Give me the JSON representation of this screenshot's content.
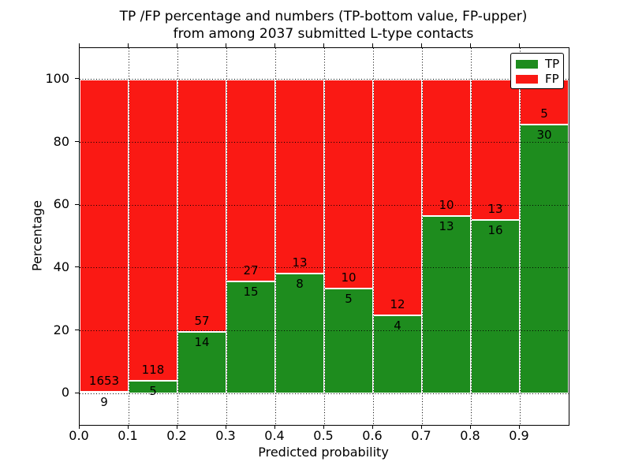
{
  "figure": {
    "title_line1": "TP /FP percentage and numbers (TP-bottom value, FP-upper)",
    "title_line2": "from among 2037 submitted L-type contacts"
  },
  "chart_data": {
    "type": "bar",
    "stacked": true,
    "normalized_to_percent": true,
    "title": "TP /FP percentage and numbers (TP-bottom value, FP-upper) from among 2037 submitted L-type contacts",
    "xlabel": "Predicted probability",
    "ylabel": "Percentage",
    "xlim": [
      0.0,
      1.0
    ],
    "ylim": [
      -10,
      110
    ],
    "x_ticks": [
      "0.0",
      "0.1",
      "0.2",
      "0.3",
      "0.4",
      "0.5",
      "0.6",
      "0.7",
      "0.8",
      "0.9"
    ],
    "y_ticks": [
      "0",
      "20",
      "40",
      "60",
      "80",
      "100"
    ],
    "bin_width": 0.1,
    "bin_starts": [
      0.0,
      0.1,
      0.2,
      0.3,
      0.4,
      0.5,
      0.6,
      0.7,
      0.8,
      0.9
    ],
    "series": [
      {
        "name": "TP",
        "color": "#1e8c1e",
        "counts": [
          9,
          5,
          14,
          15,
          8,
          5,
          4,
          13,
          16,
          30
        ]
      },
      {
        "name": "FP",
        "color": "#fa1914",
        "counts": [
          1653,
          118,
          57,
          27,
          13,
          10,
          12,
          10,
          13,
          5
        ]
      }
    ],
    "total_contacts": 2037,
    "grid": "dotted",
    "bar_edge_color": "#ffffff",
    "legend": {
      "position": "upper right",
      "entries": [
        "TP",
        "FP"
      ]
    }
  }
}
